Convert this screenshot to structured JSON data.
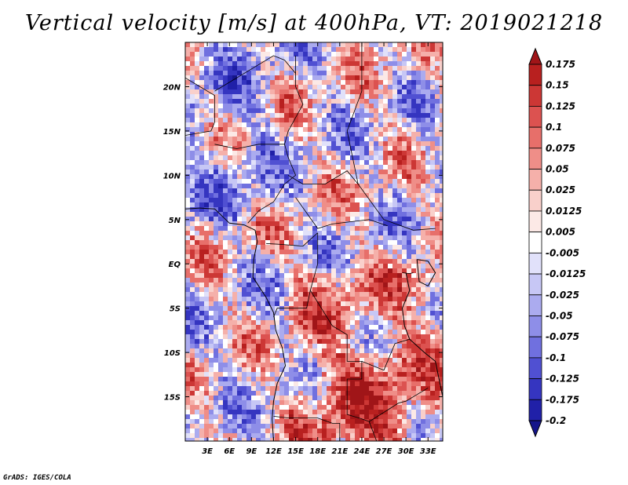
{
  "chart_data": {
    "type": "heatmap",
    "title": "Vertical velocity [m/s] at 400hPa, VT: 2019021218",
    "variable": "Vertical velocity",
    "units": "m/s",
    "level": "400hPa",
    "valid_time": "2019021218",
    "lon_range": [
      0,
      35
    ],
    "lat_range": [
      -20,
      25
    ],
    "x_ticks": [
      "3E",
      "6E",
      "9E",
      "12E",
      "15E",
      "18E",
      "21E",
      "24E",
      "27E",
      "30E",
      "33E"
    ],
    "x_tick_values": [
      3,
      6,
      9,
      12,
      15,
      18,
      21,
      24,
      27,
      30,
      33
    ],
    "y_ticks": [
      "20N",
      "15N",
      "10N",
      "5N",
      "EQ",
      "5S",
      "10S",
      "15S"
    ],
    "y_tick_values": [
      20,
      15,
      10,
      5,
      0,
      -5,
      -10,
      -15
    ],
    "colorbar": {
      "levels": [
        "0.175",
        "0.15",
        "0.125",
        "0.1",
        "0.075",
        "0.05",
        "0.025",
        "0.0125",
        "0.005",
        "-0.005",
        "-0.0125",
        "-0.025",
        "-0.05",
        "-0.075",
        "-0.1",
        "-0.125",
        "-0.175",
        "-0.2"
      ],
      "colors": [
        "#a01518",
        "#b8201f",
        "#cc3735",
        "#dc5250",
        "#e76f6a",
        "#ef8e88",
        "#f5b0aa",
        "#f9d0cb",
        "#fce9e6",
        "#ffffff",
        "#e1e1fa",
        "#c7c7f5",
        "#ababef",
        "#8e8ee8",
        "#7070df",
        "#5050d2",
        "#3535c0",
        "#2020a8",
        "#15158a"
      ]
    },
    "features": [
      "coastlines",
      "country borders",
      "lakes"
    ]
  },
  "credit": "GrADS: IGES/COLA"
}
